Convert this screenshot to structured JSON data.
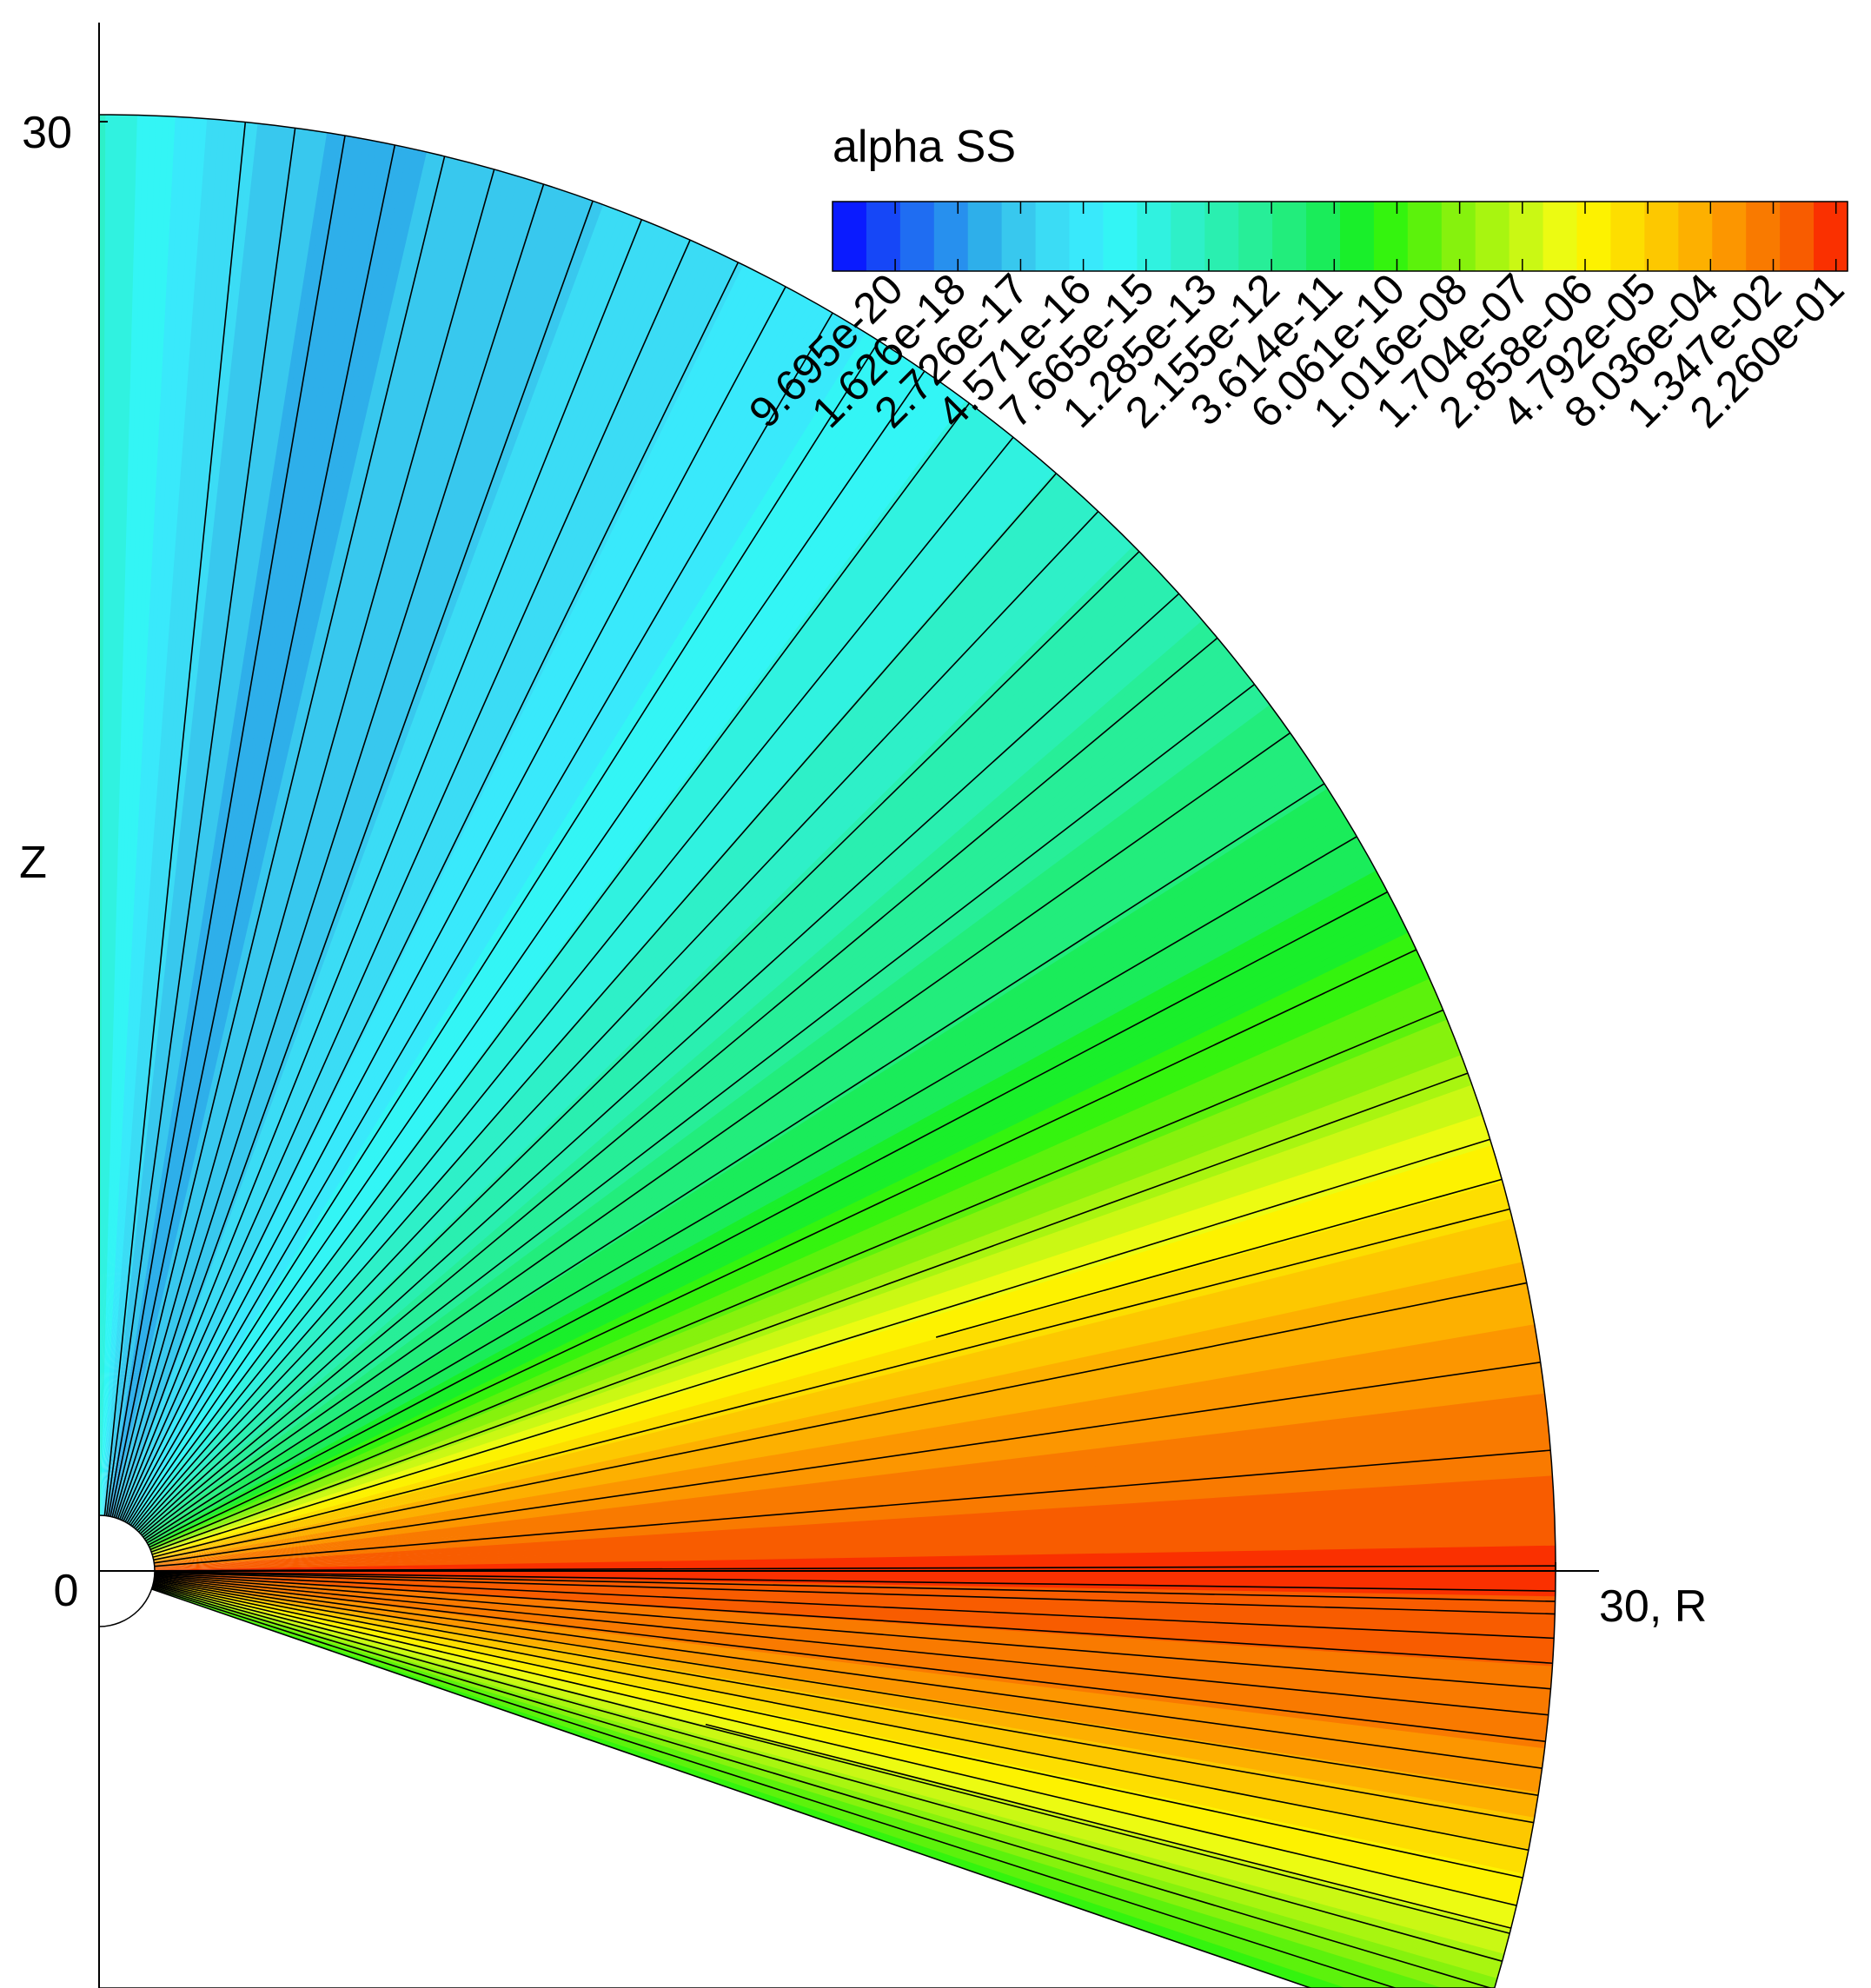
{
  "chart_data": {
    "type": "heatmap",
    "title": "",
    "xlabel": "R",
    "ylabel": "Z",
    "x_ticks": [
      "0",
      "30, R"
    ],
    "y_ticks": [
      "0",
      "30"
    ],
    "xlim": [
      0,
      30
    ],
    "ylim": [
      -8.2,
      32.2
    ],
    "domain": "quarter-annulus in R–Z plane, radius 30, inner hole radius ~1.2",
    "colorbar": {
      "title": "alpha SS",
      "scale": "log",
      "range": [
        5.8e-21,
        0.38
      ],
      "levels": 30,
      "colors": [
        "#0a1bff",
        "#1647f7",
        "#1f6df2",
        "#2790ee",
        "#2eafea",
        "#38c8ee",
        "#3bdcf5",
        "#39e9fb",
        "#33f5f5",
        "#30f2e0",
        "#2ef0c8",
        "#2aefb0",
        "#27ee98",
        "#22ed7c",
        "#1aec5a",
        "#19ef2a",
        "#34f40e",
        "#5cf20c",
        "#86f20d",
        "#a8f510",
        "#caf814",
        "#ecfb12",
        "#fdf200",
        "#fdde00",
        "#fdc800",
        "#fdb000",
        "#fc9600",
        "#f97a00",
        "#f85c00",
        "#fa3000"
      ],
      "tick_labels": [
        "9.695e-20",
        "1.626e-18",
        "2.726e-17",
        "4.571e-16",
        "7.665e-15",
        "1.285e-13",
        "2.155e-12",
        "3.614e-11",
        "6.061e-10",
        "1.016e-08",
        "1.704e-07",
        "2.858e-06",
        "4.792e-05",
        "8.036e-04",
        "1.347e-02",
        "2.260e-01"
      ],
      "placement": "top-right"
    },
    "field": {
      "description_of_structure": "log10(alpha) vs polar angle from the equator",
      "angle_deg": [
        -20,
        -12,
        -8,
        -4,
        -2,
        0,
        2,
        4,
        8,
        12,
        15,
        18,
        21,
        25,
        30,
        40,
        50,
        60,
        70,
        80,
        85,
        90
      ],
      "log10_alpha": [
        -10,
        -5,
        -2.6,
        -1.8,
        -1.3,
        -0.9,
        -1.3,
        -1.8,
        -2.6,
        -3.6,
        -4.8,
        -6.2,
        -7.8,
        -9.4,
        -10.6,
        -12.2,
        -13.8,
        -15.2,
        -16.3,
        -17.2,
        -16,
        -13.5
      ]
    },
    "magnetic_field_lines": {
      "count_upper": 36,
      "count_lower": 18,
      "style": "thin black radial lines"
    }
  }
}
